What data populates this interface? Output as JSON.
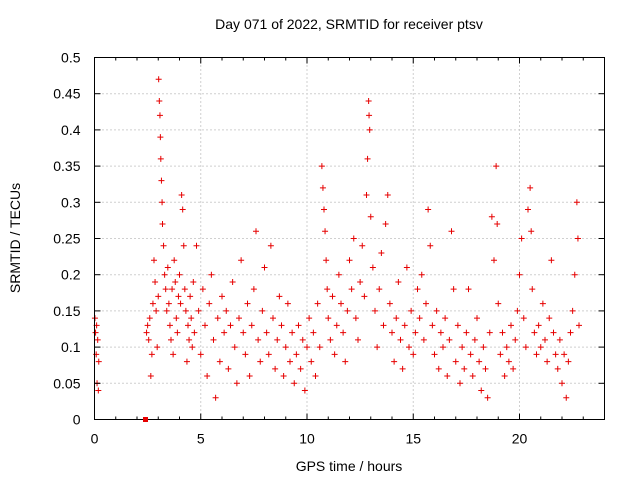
{
  "chart_data": {
    "type": "scatter",
    "title": "Day 071 of 2022, SRMTID for receiver ptsv",
    "xlabel": "GPS time / hours",
    "ylabel": "SRMTID / TECUs",
    "xlim": [
      0,
      24
    ],
    "ylim": [
      0,
      0.5
    ],
    "xticks": [
      0,
      5,
      10,
      15,
      20
    ],
    "xtick_labels": [
      "0",
      "5",
      "10",
      "15",
      "20"
    ],
    "yticks": [
      0,
      0.05,
      0.1,
      0.15,
      0.2,
      0.25,
      0.3,
      0.35,
      0.4,
      0.45,
      0.5
    ],
    "ytick_labels": [
      "0",
      "0.05",
      "0.1",
      "0.15",
      "0.2",
      "0.25",
      "0.3",
      "0.35",
      "0.4",
      "0.45",
      "0.5"
    ],
    "grid": true,
    "marker": "plus",
    "marker_color": "#e60000",
    "zero_marker": {
      "x": 2.4,
      "y": 0.0
    },
    "series": [
      {
        "name": "SRMTID",
        "points": [
          [
            0.02,
            0.14
          ],
          [
            0.05,
            0.12
          ],
          [
            0.08,
            0.09
          ],
          [
            0.1,
            0.13
          ],
          [
            0.12,
            0.05
          ],
          [
            0.15,
            0.11
          ],
          [
            0.18,
            0.04
          ],
          [
            0.2,
            0.08
          ],
          [
            2.45,
            0.12
          ],
          [
            2.5,
            0.13
          ],
          [
            2.55,
            0.11
          ],
          [
            2.6,
            0.14
          ],
          [
            2.65,
            0.06
          ],
          [
            2.7,
            0.09
          ],
          [
            2.75,
            0.16
          ],
          [
            2.8,
            0.22
          ],
          [
            2.85,
            0.19
          ],
          [
            2.9,
            0.15
          ],
          [
            2.95,
            0.1
          ],
          [
            3.0,
            0.17
          ],
          [
            3.02,
            0.47
          ],
          [
            3.05,
            0.44
          ],
          [
            3.08,
            0.42
          ],
          [
            3.1,
            0.39
          ],
          [
            3.12,
            0.36
          ],
          [
            3.15,
            0.33
          ],
          [
            3.18,
            0.3
          ],
          [
            3.2,
            0.27
          ],
          [
            3.25,
            0.24
          ],
          [
            3.3,
            0.2
          ],
          [
            3.35,
            0.18
          ],
          [
            3.4,
            0.15
          ],
          [
            3.45,
            0.21
          ],
          [
            3.5,
            0.16
          ],
          [
            3.55,
            0.13
          ],
          [
            3.6,
            0.11
          ],
          [
            3.65,
            0.18
          ],
          [
            3.7,
            0.09
          ],
          [
            3.75,
            0.22
          ],
          [
            3.8,
            0.19
          ],
          [
            3.85,
            0.14
          ],
          [
            3.9,
            0.12
          ],
          [
            3.95,
            0.17
          ],
          [
            4.0,
            0.2
          ],
          [
            4.05,
            0.16
          ],
          [
            4.1,
            0.31
          ],
          [
            4.15,
            0.29
          ],
          [
            4.2,
            0.24
          ],
          [
            4.25,
            0.18
          ],
          [
            4.3,
            0.15
          ],
          [
            4.35,
            0.08
          ],
          [
            4.4,
            0.13
          ],
          [
            4.45,
            0.11
          ],
          [
            4.5,
            0.17
          ],
          [
            4.55,
            0.14
          ],
          [
            4.6,
            0.1
          ],
          [
            4.65,
            0.19
          ],
          [
            4.7,
            0.12
          ],
          [
            4.8,
            0.24
          ],
          [
            4.9,
            0.15
          ],
          [
            5.0,
            0.09
          ],
          [
            5.1,
            0.18
          ],
          [
            5.2,
            0.13
          ],
          [
            5.3,
            0.06
          ],
          [
            5.4,
            0.16
          ],
          [
            5.5,
            0.2
          ],
          [
            5.6,
            0.11
          ],
          [
            5.7,
            0.03
          ],
          [
            5.8,
            0.14
          ],
          [
            5.9,
            0.08
          ],
          [
            6.0,
            0.17
          ],
          [
            6.1,
            0.12
          ],
          [
            6.2,
            0.15
          ],
          [
            6.3,
            0.07
          ],
          [
            6.4,
            0.13
          ],
          [
            6.5,
            0.19
          ],
          [
            6.6,
            0.1
          ],
          [
            6.7,
            0.05
          ],
          [
            6.8,
            0.14
          ],
          [
            6.9,
            0.22
          ],
          [
            7.0,
            0.12
          ],
          [
            7.1,
            0.09
          ],
          [
            7.2,
            0.16
          ],
          [
            7.3,
            0.06
          ],
          [
            7.4,
            0.13
          ],
          [
            7.5,
            0.18
          ],
          [
            7.6,
            0.26
          ],
          [
            7.7,
            0.11
          ],
          [
            7.8,
            0.08
          ],
          [
            7.9,
            0.15
          ],
          [
            8.0,
            0.21
          ],
          [
            8.1,
            0.12
          ],
          [
            8.2,
            0.09
          ],
          [
            8.3,
            0.24
          ],
          [
            8.4,
            0.14
          ],
          [
            8.5,
            0.07
          ],
          [
            8.6,
            0.11
          ],
          [
            8.7,
            0.17
          ],
          [
            8.8,
            0.13
          ],
          [
            8.9,
            0.06
          ],
          [
            9.0,
            0.1
          ],
          [
            9.1,
            0.16
          ],
          [
            9.2,
            0.08
          ],
          [
            9.3,
            0.12
          ],
          [
            9.4,
            0.05
          ],
          [
            9.5,
            0.09
          ],
          [
            9.6,
            0.13
          ],
          [
            9.7,
            0.07
          ],
          [
            9.8,
            0.11
          ],
          [
            9.9,
            0.04
          ],
          [
            10.0,
            0.1
          ],
          [
            10.1,
            0.14
          ],
          [
            10.2,
            0.08
          ],
          [
            10.3,
            0.12
          ],
          [
            10.4,
            0.06
          ],
          [
            10.5,
            0.16
          ],
          [
            10.6,
            0.1
          ],
          [
            10.7,
            0.35
          ],
          [
            10.75,
            0.32
          ],
          [
            10.8,
            0.29
          ],
          [
            10.85,
            0.26
          ],
          [
            10.9,
            0.22
          ],
          [
            10.95,
            0.18
          ],
          [
            11.0,
            0.14
          ],
          [
            11.1,
            0.11
          ],
          [
            11.2,
            0.17
          ],
          [
            11.3,
            0.09
          ],
          [
            11.4,
            0.13
          ],
          [
            11.5,
            0.2
          ],
          [
            11.6,
            0.16
          ],
          [
            11.7,
            0.12
          ],
          [
            11.8,
            0.08
          ],
          [
            11.9,
            0.15
          ],
          [
            12.0,
            0.22
          ],
          [
            12.1,
            0.18
          ],
          [
            12.2,
            0.25
          ],
          [
            12.3,
            0.14
          ],
          [
            12.4,
            0.11
          ],
          [
            12.5,
            0.19
          ],
          [
            12.6,
            0.24
          ],
          [
            12.7,
            0.17
          ],
          [
            12.8,
            0.31
          ],
          [
            12.85,
            0.36
          ],
          [
            12.9,
            0.44
          ],
          [
            12.92,
            0.42
          ],
          [
            12.95,
            0.4
          ],
          [
            13.0,
            0.28
          ],
          [
            13.1,
            0.21
          ],
          [
            13.2,
            0.15
          ],
          [
            13.3,
            0.1
          ],
          [
            13.4,
            0.18
          ],
          [
            13.5,
            0.23
          ],
          [
            13.6,
            0.13
          ],
          [
            13.7,
            0.27
          ],
          [
            13.8,
            0.31
          ],
          [
            13.9,
            0.16
          ],
          [
            14.0,
            0.12
          ],
          [
            14.1,
            0.08
          ],
          [
            14.2,
            0.14
          ],
          [
            14.3,
            0.19
          ],
          [
            14.4,
            0.11
          ],
          [
            14.5,
            0.07
          ],
          [
            14.6,
            0.13
          ],
          [
            14.7,
            0.21
          ],
          [
            14.8,
            0.1
          ],
          [
            14.9,
            0.15
          ],
          [
            15.0,
            0.09
          ],
          [
            15.1,
            0.12
          ],
          [
            15.2,
            0.18
          ],
          [
            15.3,
            0.14
          ],
          [
            15.4,
            0.2
          ],
          [
            15.5,
            0.11
          ],
          [
            15.6,
            0.16
          ],
          [
            15.7,
            0.29
          ],
          [
            15.8,
            0.24
          ],
          [
            15.9,
            0.13
          ],
          [
            16.0,
            0.09
          ],
          [
            16.1,
            0.15
          ],
          [
            16.2,
            0.07
          ],
          [
            16.3,
            0.12
          ],
          [
            16.4,
            0.1
          ],
          [
            16.5,
            0.14
          ],
          [
            16.6,
            0.06
          ],
          [
            16.7,
            0.11
          ],
          [
            16.8,
            0.26
          ],
          [
            16.9,
            0.18
          ],
          [
            17.0,
            0.08
          ],
          [
            17.1,
            0.13
          ],
          [
            17.2,
            0.05
          ],
          [
            17.3,
            0.1
          ],
          [
            17.4,
            0.07
          ],
          [
            17.5,
            0.12
          ],
          [
            17.6,
            0.18
          ],
          [
            17.7,
            0.09
          ],
          [
            17.8,
            0.06
          ],
          [
            17.9,
            0.11
          ],
          [
            18.0,
            0.14
          ],
          [
            18.1,
            0.08
          ],
          [
            18.2,
            0.04
          ],
          [
            18.3,
            0.1
          ],
          [
            18.4,
            0.07
          ],
          [
            18.5,
            0.03
          ],
          [
            18.6,
            0.12
          ],
          [
            18.7,
            0.28
          ],
          [
            18.8,
            0.22
          ],
          [
            18.9,
            0.35
          ],
          [
            18.95,
            0.27
          ],
          [
            19.0,
            0.16
          ],
          [
            19.1,
            0.09
          ],
          [
            19.2,
            0.12
          ],
          [
            19.3,
            0.06
          ],
          [
            19.4,
            0.1
          ],
          [
            19.5,
            0.08
          ],
          [
            19.6,
            0.13
          ],
          [
            19.7,
            0.07
          ],
          [
            19.8,
            0.11
          ],
          [
            19.9,
            0.15
          ],
          [
            20.0,
            0.2
          ],
          [
            20.1,
            0.25
          ],
          [
            20.2,
            0.14
          ],
          [
            20.3,
            0.1
          ],
          [
            20.4,
            0.29
          ],
          [
            20.5,
            0.32
          ],
          [
            20.55,
            0.26
          ],
          [
            20.6,
            0.18
          ],
          [
            20.7,
            0.12
          ],
          [
            20.8,
            0.09
          ],
          [
            20.9,
            0.13
          ],
          [
            21.0,
            0.1
          ],
          [
            21.1,
            0.16
          ],
          [
            21.2,
            0.11
          ],
          [
            21.3,
            0.08
          ],
          [
            21.4,
            0.14
          ],
          [
            21.5,
            0.22
          ],
          [
            21.6,
            0.12
          ],
          [
            21.7,
            0.09
          ],
          [
            21.8,
            0.07
          ],
          [
            21.9,
            0.11
          ],
          [
            22.0,
            0.05
          ],
          [
            22.1,
            0.09
          ],
          [
            22.2,
            0.03
          ],
          [
            22.3,
            0.08
          ],
          [
            22.4,
            0.12
          ],
          [
            22.5,
            0.15
          ],
          [
            22.6,
            0.2
          ],
          [
            22.7,
            0.3
          ],
          [
            22.75,
            0.25
          ],
          [
            22.8,
            0.13
          ]
        ]
      }
    ]
  }
}
